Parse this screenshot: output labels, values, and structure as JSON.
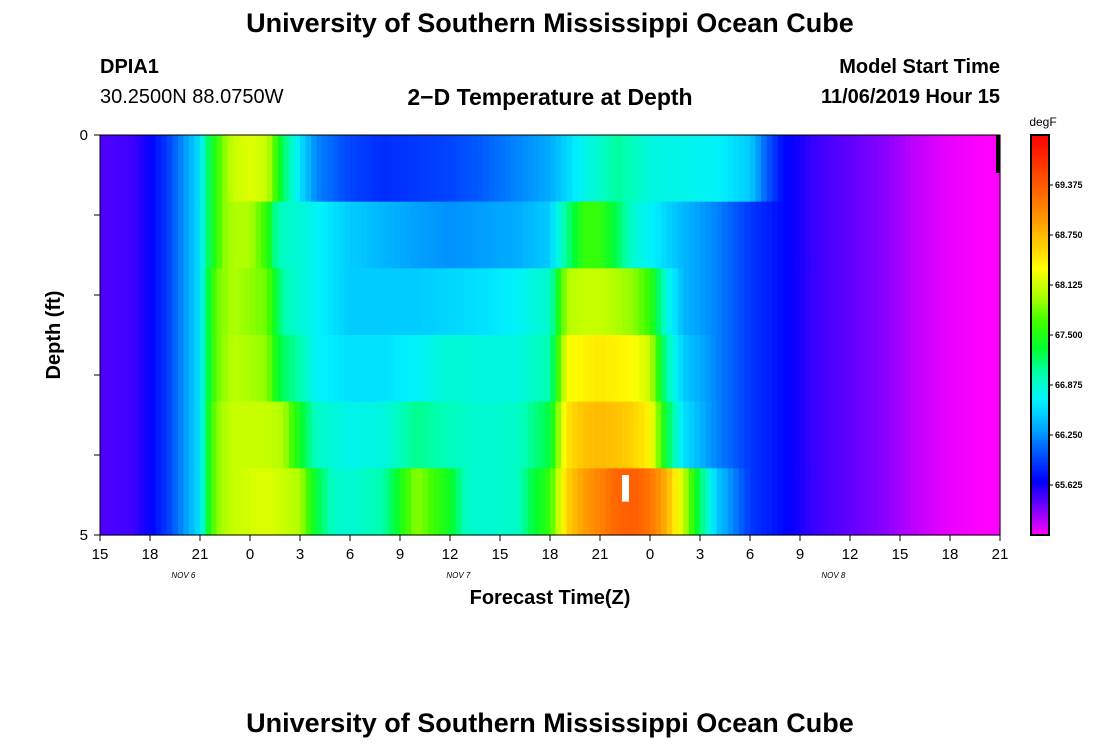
{
  "header": {
    "title": "University of Southern Mississippi Ocean Cube",
    "footer_title": "University of Southern Mississippi Ocean Cube",
    "station": "DPIA1",
    "coordinates": "30.2500N 88.0750W",
    "subtitle": "2−D Temperature at Depth",
    "model_start_label": "Model Start Time",
    "model_start_value": "11/06/2019 Hour 15"
  },
  "chart_data": {
    "type": "heatmap",
    "title": "2−D Temperature at Depth",
    "xlabel": "Forecast Time(Z)",
    "ylabel": "Depth (ft)",
    "units": "degF",
    "x_start_hour": 15,
    "x_end_hour": 69,
    "x_step_hours": 1,
    "x_tick_labels": [
      "15",
      "18",
      "21",
      "0",
      "3",
      "6",
      "9",
      "12",
      "15",
      "18",
      "21",
      "0",
      "3",
      "6",
      "9",
      "12",
      "15",
      "18",
      "21"
    ],
    "x_date_labels": [
      {
        "label": "NOV  6",
        "hour": 20
      },
      {
        "label": "NOV  7",
        "hour": 36.5
      },
      {
        "label": "NOV  8",
        "hour": 59
      }
    ],
    "y_tick_labels": [
      "0",
      "",
      "",
      "",
      "",
      "5"
    ],
    "ylim": [
      0,
      5
    ],
    "color_scale": {
      "min": 65.0,
      "max": 70.0,
      "labels": [
        "69.375",
        "68.750",
        "68.125",
        "67.500",
        "66.875",
        "66.250",
        "65.625"
      ],
      "colors": [
        "#ff00ff",
        "#7a00ff",
        "#0000ff",
        "#0050ff",
        "#00a8ff",
        "#00f0ff",
        "#00ffb0",
        "#00ff30",
        "#40ff00",
        "#b0ff00",
        "#ffff00",
        "#ffc800",
        "#ff9000",
        "#ff6000",
        "#ff3000",
        "#ff0000"
      ]
    },
    "rows": [
      {
        "depth": 0,
        "knots": [
          [
            15,
            65.45
          ],
          [
            17,
            65.5
          ],
          [
            18,
            65.65
          ],
          [
            19,
            65.9
          ],
          [
            20,
            66.25
          ],
          [
            21,
            66.6
          ],
          [
            21.5,
            67.2
          ],
          [
            22,
            67.6
          ],
          [
            22.5,
            67.9
          ],
          [
            23,
            68.1
          ],
          [
            24,
            68.2
          ],
          [
            25,
            68.1
          ],
          [
            25.5,
            67.7
          ],
          [
            26,
            67.2
          ],
          [
            27,
            66.6
          ],
          [
            28,
            66.2
          ],
          [
            30,
            65.95
          ],
          [
            32,
            65.85
          ],
          [
            34,
            65.9
          ],
          [
            36,
            65.95
          ],
          [
            38,
            66.05
          ],
          [
            40,
            66.2
          ],
          [
            42,
            66.35
          ],
          [
            43,
            66.55
          ],
          [
            44,
            66.75
          ],
          [
            45,
            66.9
          ],
          [
            46,
            67.05
          ],
          [
            47,
            66.95
          ],
          [
            48,
            66.8
          ],
          [
            50,
            66.75
          ],
          [
            52,
            66.7
          ],
          [
            54,
            66.5
          ],
          [
            55,
            66.05
          ],
          [
            56,
            65.7
          ],
          [
            58,
            65.5
          ],
          [
            60,
            65.4
          ],
          [
            62,
            65.3
          ],
          [
            64,
            65.15
          ],
          [
            66,
            65.05
          ],
          [
            68,
            65.0
          ],
          [
            69,
            65.0
          ]
        ]
      },
      {
        "depth": 1,
        "knots": [
          [
            15,
            65.45
          ],
          [
            17,
            65.5
          ],
          [
            18,
            65.65
          ],
          [
            19,
            65.9
          ],
          [
            20,
            66.25
          ],
          [
            21,
            66.6
          ],
          [
            21.5,
            67.2
          ],
          [
            22,
            67.6
          ],
          [
            22.5,
            67.9
          ],
          [
            23,
            68.0
          ],
          [
            24,
            68.0
          ],
          [
            25,
            67.6
          ],
          [
            25.5,
            67.1
          ],
          [
            26,
            66.9
          ],
          [
            27,
            66.85
          ],
          [
            28,
            66.7
          ],
          [
            30,
            66.5
          ],
          [
            32,
            66.4
          ],
          [
            34,
            66.3
          ],
          [
            36,
            66.25
          ],
          [
            38,
            66.3
          ],
          [
            40,
            66.35
          ],
          [
            42,
            66.5
          ],
          [
            43,
            67.1
          ],
          [
            44,
            67.6
          ],
          [
            45,
            67.6
          ],
          [
            46,
            67.25
          ],
          [
            47,
            66.85
          ],
          [
            48,
            66.7
          ],
          [
            50,
            66.4
          ],
          [
            52,
            66.2
          ],
          [
            54,
            65.9
          ],
          [
            56,
            65.7
          ],
          [
            58,
            65.5
          ],
          [
            60,
            65.4
          ],
          [
            62,
            65.3
          ],
          [
            64,
            65.15
          ],
          [
            66,
            65.05
          ],
          [
            68,
            65.0
          ],
          [
            69,
            65.0
          ]
        ]
      },
      {
        "depth": 2,
        "knots": [
          [
            15,
            65.45
          ],
          [
            17,
            65.5
          ],
          [
            18,
            65.65
          ],
          [
            19,
            65.9
          ],
          [
            20,
            66.25
          ],
          [
            21,
            66.6
          ],
          [
            21.5,
            67.3
          ],
          [
            22,
            67.8
          ],
          [
            23,
            68.0
          ],
          [
            25,
            67.8
          ],
          [
            25.5,
            67.4
          ],
          [
            26,
            67.0
          ],
          [
            27,
            66.85
          ],
          [
            28,
            66.7
          ],
          [
            30,
            66.5
          ],
          [
            32,
            66.5
          ],
          [
            34,
            66.5
          ],
          [
            36,
            66.55
          ],
          [
            38,
            66.6
          ],
          [
            40,
            66.7
          ],
          [
            42,
            66.9
          ],
          [
            43,
            68.0
          ],
          [
            44,
            68.1
          ],
          [
            45,
            68.1
          ],
          [
            46,
            68.0
          ],
          [
            47,
            67.9
          ],
          [
            48,
            67.6
          ],
          [
            49,
            66.8
          ],
          [
            50,
            66.4
          ],
          [
            52,
            66.2
          ],
          [
            54,
            65.9
          ],
          [
            56,
            65.7
          ],
          [
            58,
            65.5
          ],
          [
            60,
            65.4
          ],
          [
            62,
            65.3
          ],
          [
            64,
            65.15
          ],
          [
            66,
            65.05
          ],
          [
            68,
            65.0
          ],
          [
            69,
            65.0
          ]
        ]
      },
      {
        "depth": 3,
        "knots": [
          [
            15,
            65.45
          ],
          [
            17,
            65.5
          ],
          [
            18,
            65.65
          ],
          [
            19,
            65.9
          ],
          [
            20,
            66.25
          ],
          [
            21,
            66.6
          ],
          [
            21.5,
            67.3
          ],
          [
            22,
            67.8
          ],
          [
            23,
            68.05
          ],
          [
            25,
            67.9
          ],
          [
            25.5,
            67.5
          ],
          [
            26,
            67.2
          ],
          [
            27,
            67.0
          ],
          [
            28,
            66.7
          ],
          [
            30,
            66.6
          ],
          [
            32,
            66.6
          ],
          [
            34,
            66.7
          ],
          [
            36,
            66.85
          ],
          [
            38,
            66.8
          ],
          [
            40,
            66.8
          ],
          [
            42,
            67.0
          ],
          [
            43,
            68.3
          ],
          [
            44,
            68.4
          ],
          [
            45,
            68.45
          ],
          [
            46,
            68.4
          ],
          [
            47,
            68.35
          ],
          [
            48,
            68.1
          ],
          [
            49,
            67.0
          ],
          [
            50,
            66.5
          ],
          [
            52,
            66.2
          ],
          [
            54,
            65.9
          ],
          [
            56,
            65.7
          ],
          [
            58,
            65.5
          ],
          [
            60,
            65.4
          ],
          [
            62,
            65.3
          ],
          [
            64,
            65.15
          ],
          [
            66,
            65.05
          ],
          [
            68,
            65.0
          ],
          [
            69,
            65.0
          ]
        ]
      },
      {
        "depth": 4,
        "knots": [
          [
            15,
            65.45
          ],
          [
            17,
            65.5
          ],
          [
            18,
            65.65
          ],
          [
            19,
            65.9
          ],
          [
            20,
            66.25
          ],
          [
            21,
            66.6
          ],
          [
            21.5,
            67.4
          ],
          [
            22,
            67.9
          ],
          [
            23,
            68.1
          ],
          [
            25,
            68.1
          ],
          [
            26,
            68.0
          ],
          [
            27,
            67.4
          ],
          [
            28,
            66.9
          ],
          [
            30,
            66.75
          ],
          [
            32,
            66.8
          ],
          [
            34,
            67.1
          ],
          [
            36,
            66.95
          ],
          [
            38,
            66.85
          ],
          [
            40,
            66.9
          ],
          [
            42,
            67.3
          ],
          [
            43,
            68.5
          ],
          [
            44,
            68.7
          ],
          [
            45,
            68.75
          ],
          [
            46,
            68.7
          ],
          [
            47,
            68.6
          ],
          [
            48,
            68.4
          ],
          [
            49,
            67.3
          ],
          [
            50,
            66.6
          ],
          [
            52,
            66.2
          ],
          [
            54,
            65.9
          ],
          [
            56,
            65.7
          ],
          [
            58,
            65.5
          ],
          [
            60,
            65.4
          ],
          [
            62,
            65.3
          ],
          [
            64,
            65.15
          ],
          [
            66,
            65.05
          ],
          [
            68,
            65.0
          ],
          [
            69,
            65.0
          ]
        ]
      },
      {
        "depth": 5,
        "knots": [
          [
            15,
            65.45
          ],
          [
            17,
            65.5
          ],
          [
            18,
            65.65
          ],
          [
            19,
            65.9
          ],
          [
            20,
            66.25
          ],
          [
            21,
            66.6
          ],
          [
            21.5,
            67.4
          ],
          [
            22,
            67.9
          ],
          [
            23,
            68.1
          ],
          [
            25,
            68.2
          ],
          [
            27,
            68.0
          ],
          [
            28,
            67.3
          ],
          [
            29,
            66.9
          ],
          [
            30,
            66.85
          ],
          [
            32,
            67.0
          ],
          [
            34,
            67.9
          ],
          [
            36,
            67.4
          ],
          [
            37,
            66.9
          ],
          [
            38,
            66.85
          ],
          [
            40,
            66.9
          ],
          [
            41,
            67.3
          ],
          [
            42,
            67.6
          ],
          [
            43,
            68.6
          ],
          [
            44,
            68.9
          ],
          [
            45,
            69.1
          ],
          [
            46,
            69.3
          ],
          [
            47,
            69.35
          ],
          [
            48,
            69.2
          ],
          [
            49,
            68.8
          ],
          [
            50,
            68.1
          ],
          [
            51,
            67.2
          ],
          [
            52,
            66.5
          ],
          [
            54,
            65.9
          ],
          [
            56,
            65.7
          ],
          [
            58,
            65.5
          ],
          [
            60,
            65.4
          ],
          [
            62,
            65.3
          ],
          [
            64,
            65.15
          ],
          [
            66,
            65.05
          ],
          [
            68,
            65.0
          ],
          [
            69,
            65.0
          ]
        ]
      }
    ],
    "gap_at": {
      "depth": 5,
      "hour": 46
    }
  }
}
